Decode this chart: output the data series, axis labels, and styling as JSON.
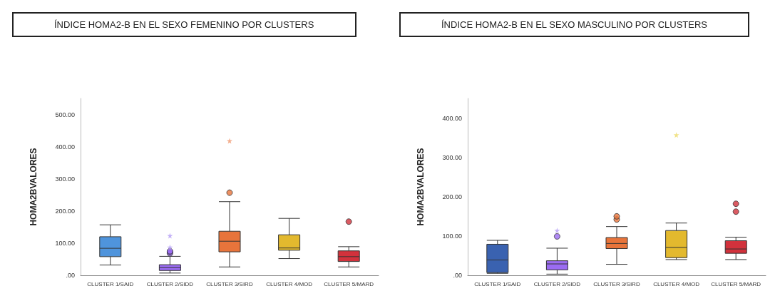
{
  "chart_data": [
    {
      "type": "box",
      "title": "ÍNDICE HOMA2-B EN EL SEXO FEMENINO POR CLUSTERS",
      "ylabel": "HOMA2BVALORES",
      "categories": [
        "CLUSTER 1/SAID",
        "CLUSTER 2/SIDD",
        "CLUSTER 3/SIRD",
        "CLUSTER 4/MOD",
        "CLUSTER 5/MARD"
      ],
      "colors": [
        "#4f94dc",
        "#9b6cf2",
        "#e8743b",
        "#e3b92e",
        "#d2323c"
      ],
      "boxes": [
        {
          "low": 32,
          "q1": 58,
          "median": 84,
          "q3": 120,
          "high": 157
        },
        {
          "low": 7,
          "q1": 15,
          "median": 24,
          "q3": 33,
          "high": 59,
          "outliers": [
            68,
            72,
            75
          ]
        },
        {
          "low": 26,
          "q1": 73,
          "median": 106,
          "q3": 137,
          "high": 229,
          "outliers": [
            257
          ]
        },
        {
          "low": 52,
          "q1": 78,
          "median": 85,
          "q3": 126,
          "high": 177
        },
        {
          "low": 26,
          "q1": 43,
          "median": 58,
          "q3": 76,
          "high": 89,
          "outliers": [
            167
          ]
        }
      ],
      "series": [
        {
          "type": "scatter",
          "marker": "star",
          "x": [
            "CLUSTER 2/SIDD",
            "CLUSTER 2/SIDD",
            "CLUSTER 3/SIRD"
          ],
          "values": [
            87,
            123,
            418
          ],
          "colors": [
            "#b49cf5",
            "#b49cf5",
            "#f09a70"
          ]
        }
      ],
      "ylim": [
        0,
        550
      ],
      "yticks": [
        {
          "value": 0,
          "label": ".00"
        },
        {
          "value": 100,
          "label": "100.00"
        },
        {
          "value": 200,
          "label": "200.00"
        },
        {
          "value": 300,
          "label": "300.00"
        },
        {
          "value": 400,
          "label": "400.00"
        },
        {
          "value": 500,
          "label": "500.00"
        }
      ],
      "grid": false
    },
    {
      "type": "box",
      "title": "ÍNDICE HOMA2-B EN EL SEXO MASCULINO POR CLUSTERS",
      "ylabel": "HOMA2BVALORES",
      "categories": [
        "CLUSTER 1/SAID",
        "CLUSTER 2/SIDD",
        "CLUSTER 3/SIRD",
        "CLUSTER 4/MOD",
        "CLUSTER 5/MARD"
      ],
      "colors": [
        "#3a62b0",
        "#9b6cf2",
        "#e8743b",
        "#e3b92e",
        "#d2323c"
      ],
      "boxes": [
        {
          "low": 5,
          "q1": 7,
          "median": 39,
          "q3": 79,
          "high": 89
        },
        {
          "low": 3,
          "q1": 14,
          "median": 29,
          "q3": 37,
          "high": 69,
          "outliers": [
            99
          ]
        },
        {
          "low": 28,
          "q1": 68,
          "median": 81,
          "q3": 96,
          "high": 124,
          "outliers": [
            142,
            150
          ]
        },
        {
          "low": 40,
          "q1": 45,
          "median": 71,
          "q3": 114,
          "high": 133
        },
        {
          "low": 40,
          "q1": 56,
          "median": 67,
          "q3": 88,
          "high": 97,
          "outliers": [
            162,
            182
          ]
        }
      ],
      "series": [
        {
          "type": "scatter",
          "marker": "star",
          "x": [
            "CLUSTER 2/SIDD",
            "CLUSTER 4/MOD"
          ],
          "values": [
            114,
            357
          ],
          "colors": [
            "#b49cf5",
            "#eedc6a"
          ]
        }
      ],
      "ylim": [
        0,
        450
      ],
      "yticks": [
        {
          "value": 0,
          "label": ".00"
        },
        {
          "value": 100,
          "label": "100.00"
        },
        {
          "value": 200,
          "label": "200.00"
        },
        {
          "value": 300,
          "label": "300.00"
        },
        {
          "value": 400,
          "label": "400.00"
        }
      ],
      "grid": false
    }
  ]
}
